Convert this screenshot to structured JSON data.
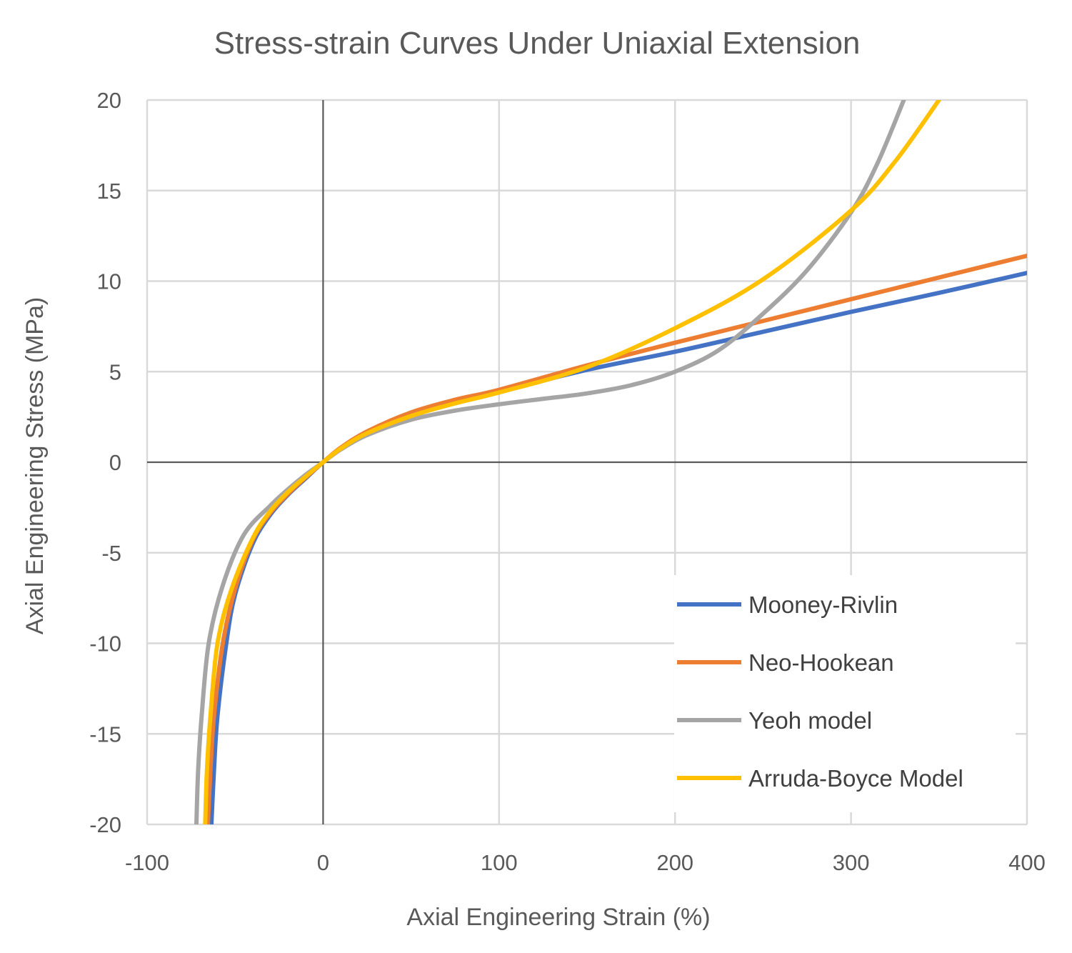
{
  "chart_data": {
    "type": "line",
    "title": "Stress-strain Curves Under Uniaxial Extension",
    "xlabel": "Axial Engineering Strain (%)",
    "ylabel": "Axial Engineering Stress (MPa)",
    "xlim": [
      -100,
      400
    ],
    "ylim": [
      -20,
      20
    ],
    "xticks": [
      -100,
      0,
      100,
      200,
      300,
      400
    ],
    "yticks": [
      -20,
      -15,
      -10,
      -5,
      0,
      5,
      10,
      15,
      20
    ],
    "grid": true,
    "legend_position": "bottom-right",
    "series": [
      {
        "name": "Mooney-Rivlin",
        "color": "#4472C4",
        "points": [
          [
            -63.5,
            -20
          ],
          [
            -62,
            -17
          ],
          [
            -60,
            -14
          ],
          [
            -55,
            -10
          ],
          [
            -50,
            -7.3
          ],
          [
            -40,
            -4.5
          ],
          [
            -30,
            -2.9
          ],
          [
            -20,
            -1.8
          ],
          [
            -10,
            -0.9
          ],
          [
            0,
            0
          ],
          [
            10,
            0.75
          ],
          [
            25,
            1.6
          ],
          [
            50,
            2.6
          ],
          [
            75,
            3.3
          ],
          [
            100,
            3.9
          ],
          [
            150,
            5.1
          ],
          [
            200,
            6.1
          ],
          [
            250,
            7.2
          ],
          [
            300,
            8.3
          ],
          [
            350,
            9.35
          ],
          [
            400,
            10.45
          ]
        ]
      },
      {
        "name": "Neo-Hookean",
        "color": "#ED7D31",
        "points": [
          [
            -65.5,
            -20
          ],
          [
            -64,
            -17
          ],
          [
            -62,
            -14
          ],
          [
            -57,
            -10
          ],
          [
            -50,
            -7
          ],
          [
            -40,
            -4.3
          ],
          [
            -30,
            -2.8
          ],
          [
            -20,
            -1.75
          ],
          [
            -10,
            -0.85
          ],
          [
            0,
            0
          ],
          [
            10,
            0.8
          ],
          [
            25,
            1.7
          ],
          [
            50,
            2.75
          ],
          [
            75,
            3.45
          ],
          [
            100,
            4.0
          ],
          [
            150,
            5.35
          ],
          [
            200,
            6.6
          ],
          [
            250,
            7.8
          ],
          [
            300,
            9.0
          ],
          [
            350,
            10.2
          ],
          [
            400,
            11.4
          ]
        ]
      },
      {
        "name": "Yeoh model",
        "color": "#A5A5A5",
        "points": [
          [
            -72,
            -20
          ],
          [
            -71,
            -17
          ],
          [
            -69,
            -14
          ],
          [
            -65,
            -10
          ],
          [
            -57,
            -6.8
          ],
          [
            -45,
            -4
          ],
          [
            -30,
            -2.4
          ],
          [
            -20,
            -1.5
          ],
          [
            -10,
            -0.7
          ],
          [
            0,
            0
          ],
          [
            10,
            0.7
          ],
          [
            25,
            1.5
          ],
          [
            50,
            2.35
          ],
          [
            75,
            2.85
          ],
          [
            100,
            3.2
          ],
          [
            125,
            3.5
          ],
          [
            150,
            3.8
          ],
          [
            175,
            4.25
          ],
          [
            200,
            5.0
          ],
          [
            225,
            6.2
          ],
          [
            250,
            8.2
          ],
          [
            275,
            10.6
          ],
          [
            300,
            13.8
          ],
          [
            315,
            16.5
          ],
          [
            330,
            20
          ]
        ]
      },
      {
        "name": "Arruda-Boyce Model",
        "color": "#FFC000",
        "points": [
          [
            -67,
            -20
          ],
          [
            -66,
            -17
          ],
          [
            -64,
            -14
          ],
          [
            -60,
            -10
          ],
          [
            -52,
            -7
          ],
          [
            -40,
            -4.2
          ],
          [
            -30,
            -2.7
          ],
          [
            -20,
            -1.65
          ],
          [
            -10,
            -0.8
          ],
          [
            0,
            0
          ],
          [
            10,
            0.75
          ],
          [
            25,
            1.6
          ],
          [
            50,
            2.55
          ],
          [
            75,
            3.25
          ],
          [
            100,
            3.85
          ],
          [
            150,
            5.25
          ],
          [
            200,
            7.4
          ],
          [
            250,
            10.1
          ],
          [
            300,
            13.9
          ],
          [
            325,
            16.6
          ],
          [
            350,
            20
          ]
        ]
      }
    ]
  }
}
